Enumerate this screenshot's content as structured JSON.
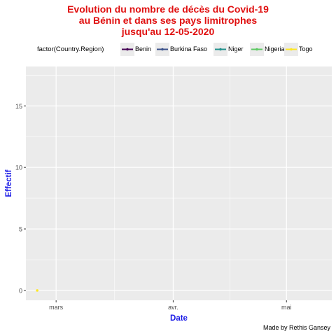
{
  "title_lines": [
    "Evolution du nombre de décès du Covid-19",
    "au Bénin et dans ses  pays limitrophes",
    "jusqu'au 12-05-2020"
  ],
  "legend": {
    "title": "factor(Country.Region)",
    "entries": [
      {
        "label": "Benin",
        "color": "#440154"
      },
      {
        "label": "Burkina Faso",
        "color": "#3b528b"
      },
      {
        "label": "Niger",
        "color": "#21908c"
      },
      {
        "label": "Nigeria",
        "color": "#5dc963"
      },
      {
        "label": "Togo",
        "color": "#fde725"
      }
    ]
  },
  "caption": "Made by Rethis Gansey",
  "colors": {
    "panel": "#ebebeb",
    "grid": "#ffffff",
    "title": "#e01010",
    "axis_title": "#1a1ae6"
  },
  "chart_data": {
    "type": "line",
    "xlabel": "Date",
    "ylabel": "Effectif",
    "x_ticks": [
      {
        "date": "2020-03-01",
        "label": "mars"
      },
      {
        "date": "2020-04-01",
        "label": "avr."
      },
      {
        "date": "2020-05-01",
        "label": "mai"
      }
    ],
    "x_range": [
      "2020-02-22",
      "2020-05-13"
    ],
    "y_ticks": [
      0,
      5,
      10,
      15
    ],
    "ylim": [
      -0.8,
      18.2
    ],
    "grid": true,
    "legend_position": "top",
    "series": [
      {
        "name": "Benin",
        "color": "#440154",
        "points": []
      },
      {
        "name": "Burkina Faso",
        "color": "#3b528b",
        "points": []
      },
      {
        "name": "Niger",
        "color": "#21908c",
        "points": []
      },
      {
        "name": "Nigeria",
        "color": "#5dc963",
        "points": []
      },
      {
        "name": "Togo",
        "color": "#fde725",
        "points": [
          {
            "date": "2020-02-25",
            "y": 0
          }
        ]
      }
    ]
  }
}
